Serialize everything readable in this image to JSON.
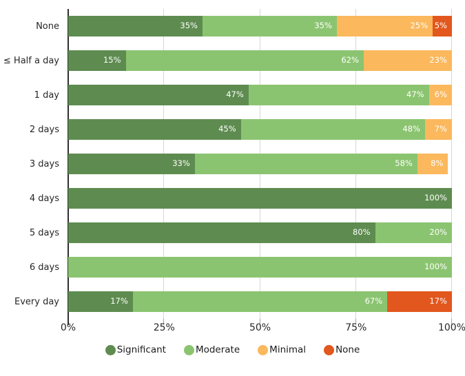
{
  "chart_data": {
    "type": "bar",
    "orientation": "horizontal",
    "stacked": true,
    "title": "",
    "xlabel": "",
    "ylabel": "",
    "xlim": [
      0,
      100
    ],
    "grid": "vertical",
    "gridline_positions_pct": [
      25,
      50,
      75,
      100
    ],
    "x_ticks": [
      {
        "pos_pct": 0,
        "label": "0%"
      },
      {
        "pos_pct": 25,
        "label": "25%"
      },
      {
        "pos_pct": 50,
        "label": "50%"
      },
      {
        "pos_pct": 75,
        "label": "75%"
      },
      {
        "pos_pct": 100,
        "label": "100%"
      }
    ],
    "categories": [
      "None",
      "≤ Half a day",
      "1 day",
      "2 days",
      "3 days",
      "4 days",
      "5 days",
      "6 days",
      "Every day"
    ],
    "series": [
      {
        "name": "Significant",
        "color": "#5e8c50",
        "values": [
          35,
          15,
          47,
          45,
          33,
          100,
          80,
          0,
          17
        ]
      },
      {
        "name": "Moderate",
        "color": "#8bc470",
        "values": [
          35,
          62,
          47,
          48,
          58,
          0,
          20,
          100,
          67
        ]
      },
      {
        "name": "Minimal",
        "color": "#fbb85c",
        "values": [
          25,
          23,
          6,
          7,
          8,
          0,
          0,
          0,
          0
        ]
      },
      {
        "name": "None",
        "color": "#e2571d",
        "values": [
          5,
          0,
          0,
          0,
          0,
          0,
          0,
          0,
          17
        ]
      }
    ],
    "value_label_suffix": "%",
    "legend_position": "bottom",
    "legend": [
      {
        "name": "Significant",
        "color": "#5e8c50"
      },
      {
        "name": "Moderate",
        "color": "#8bc470"
      },
      {
        "name": "Minimal",
        "color": "#fbb85c"
      },
      {
        "name": "None",
        "color": "#e2571d"
      }
    ]
  },
  "colors": {
    "gridline": "#d6d6d6",
    "axis_line": "#2e2e2e",
    "tick": "#a0a0a0",
    "bar_label_text": "#ffffff"
  }
}
